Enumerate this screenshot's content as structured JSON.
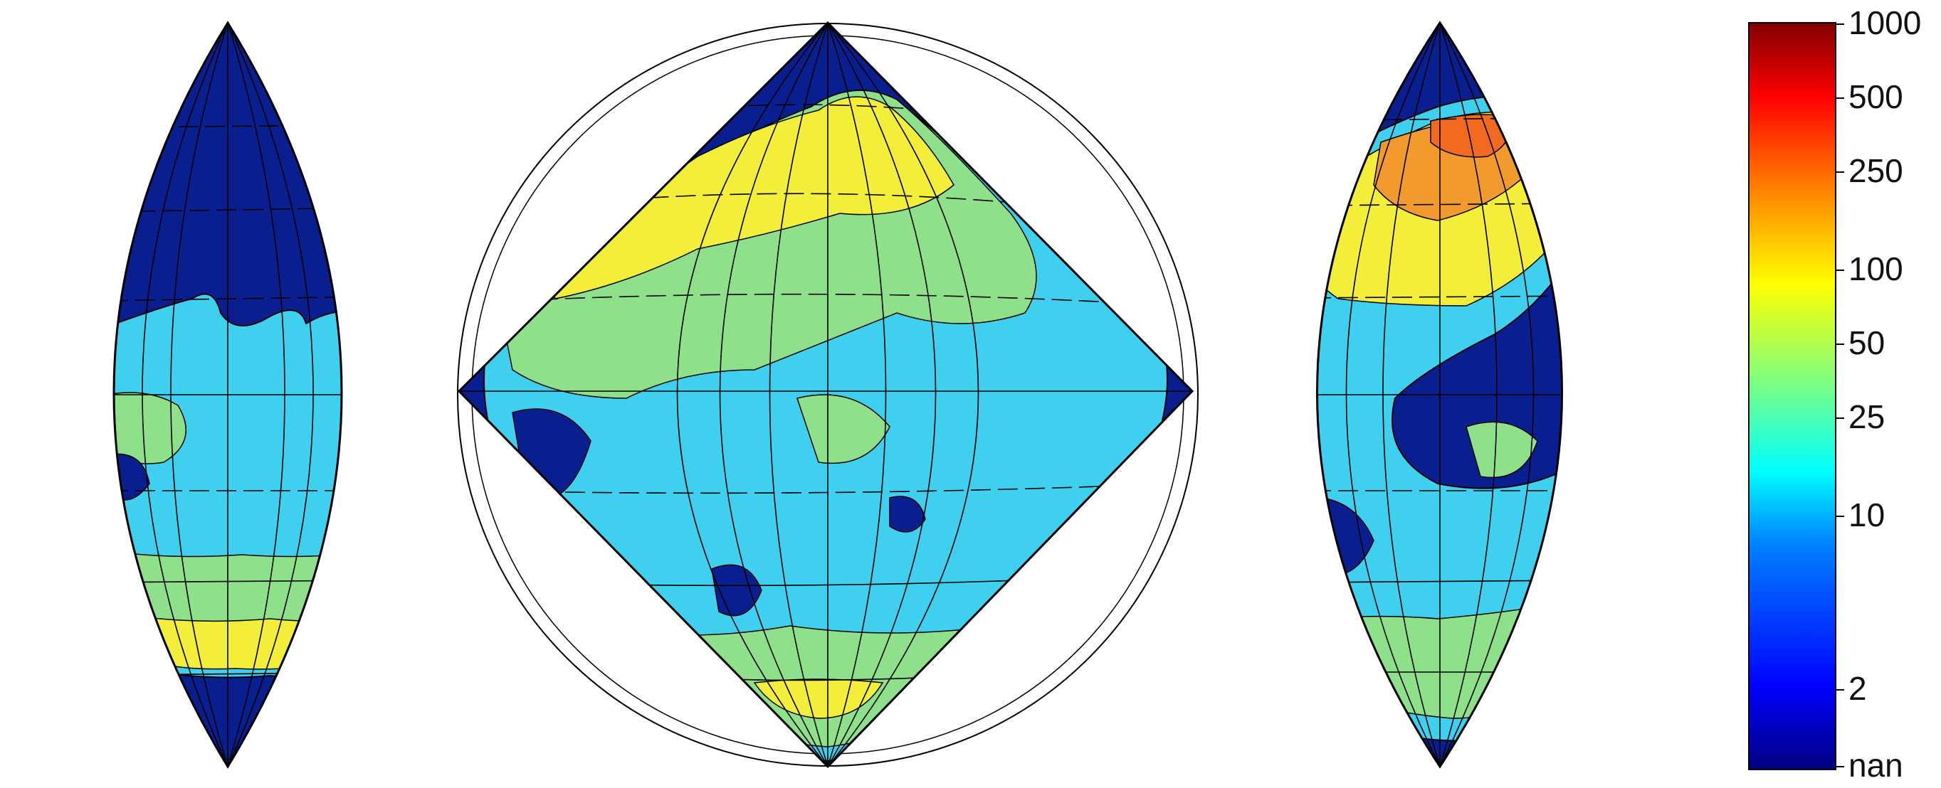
{
  "colorbar": {
    "scale": "log",
    "tick_labels": [
      "1000",
      "500",
      "250",
      "100",
      "50",
      "25",
      "10",
      "2",
      "nan"
    ],
    "tick_values": [
      1000,
      500,
      250,
      100,
      50,
      25,
      10,
      2,
      null
    ],
    "colormap": "jet",
    "stops": [
      "#00007f",
      "#0000ff",
      "#007fff",
      "#00ffff",
      "#7fff7f",
      "#ffff00",
      "#ff7f00",
      "#ff0000",
      "#7f0000"
    ]
  },
  "colors": {
    "ocean_nan": "#0a1f8f",
    "outline": "#000000",
    "low": "#3fd0f0",
    "mid": "#8fe08a",
    "high": "#f2ee3a",
    "peak": "#f29a2e"
  },
  "panels": [
    {
      "name": "left-lens-map"
    },
    {
      "name": "center-diamond-map"
    },
    {
      "name": "right-lens-map"
    }
  ]
}
